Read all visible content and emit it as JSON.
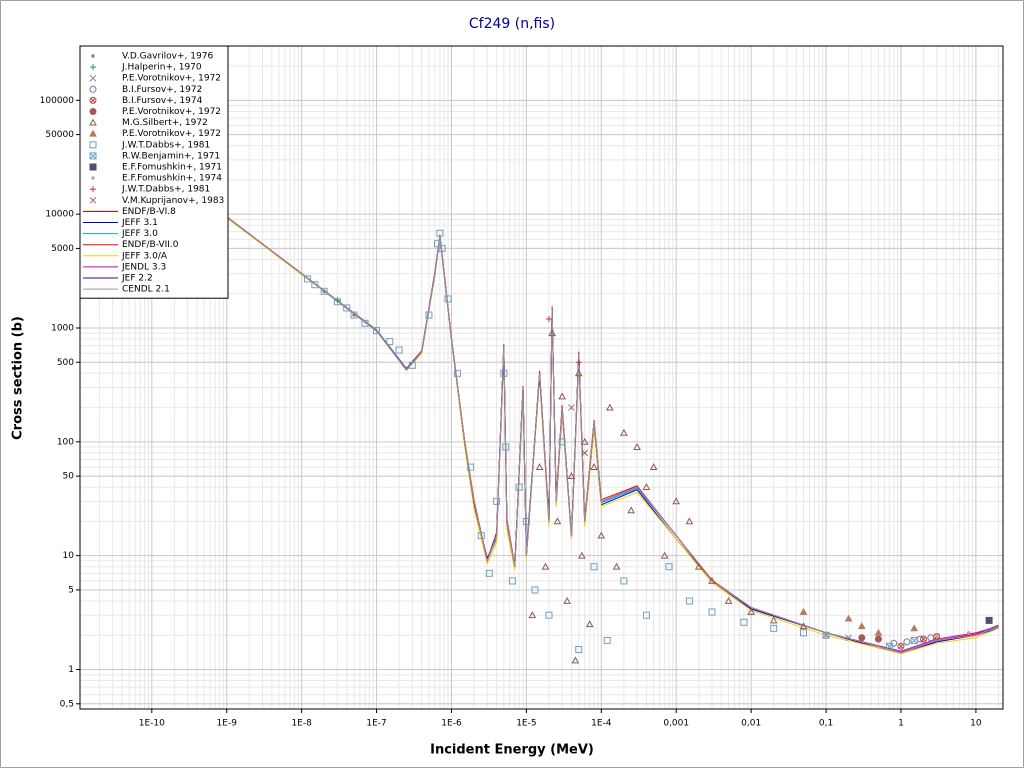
{
  "chart_data": {
    "type": "scatter",
    "title": "Cf249 (n,fis)",
    "x_label": "Incident Energy (MeV)",
    "y_label": "Cross section (b)",
    "xscale": "log",
    "yscale": "log",
    "grid": true,
    "legend": "upper left",
    "xlim": [
      1.1e-11,
      23
    ],
    "ylim": [
      0.45,
      300000
    ],
    "xticks": [
      {
        "value": 1e-10,
        "label": "1E-10"
      },
      {
        "value": 1e-09,
        "label": "1E-9"
      },
      {
        "value": 1e-08,
        "label": "1E-8"
      },
      {
        "value": 1e-07,
        "label": "1E-7"
      },
      {
        "value": 1e-06,
        "label": "1E-6"
      },
      {
        "value": 1e-05,
        "label": "1E-5"
      },
      {
        "value": 0.0001,
        "label": "1E-4"
      },
      {
        "value": 0.001,
        "label": "0,001"
      },
      {
        "value": 0.01,
        "label": "0,01"
      },
      {
        "value": 0.1,
        "label": "0,1"
      },
      1,
      10
    ],
    "yticks": [
      100000,
      50000,
      10000,
      5000,
      1000,
      500,
      100,
      50,
      10,
      5,
      1,
      {
        "value": 0.5,
        "label": "0,5"
      }
    ],
    "series": [
      {
        "name": "V.D.Gavrilov+, 1976",
        "marker": "dot",
        "color": "#808080",
        "x": [
          2e-08,
          5e-08
        ],
        "values": [
          2100,
          1300
        ]
      },
      {
        "name": "J.Halperin+, 1970",
        "marker": "plus",
        "color": "#2e8b57",
        "x": [
          3e-08
        ],
        "values": [
          1750
        ]
      },
      {
        "name": "P.E.Vorotnikov+, 1972",
        "marker": "x",
        "color": "#808080",
        "x": [
          0.1,
          0.2
        ],
        "values": [
          2.0,
          1.9
        ]
      },
      {
        "name": "B.I.Fursov+, 1972",
        "marker": "circle",
        "color": "#5f7fa8",
        "x": [
          0.8,
          1.2,
          1.8,
          2.5
        ],
        "values": [
          1.7,
          1.75,
          1.85,
          1.9
        ]
      },
      {
        "name": "B.I.Fursov+, 1974",
        "marker": "circle-x",
        "color": "#c04040",
        "x": [
          1,
          2,
          3
        ],
        "values": [
          1.6,
          1.85,
          1.95
        ]
      },
      {
        "name": "P.E.Vorotnikov+, 1972",
        "marker": "filled-circle",
        "color": "#a05a5a",
        "x": [
          0.3,
          0.5
        ],
        "values": [
          1.9,
          1.85
        ]
      },
      {
        "name": "M.G.Silbert+, 1972",
        "marker": "triangle",
        "color": "#8b5a4e",
        "x": [
          1.2e-05,
          1.5e-05,
          1.8e-05,
          2.2e-05,
          2.6e-05,
          3e-05,
          3.5e-05,
          4e-05,
          4.5e-05,
          5e-05,
          5.5e-05,
          6e-05,
          7e-05,
          8e-05,
          0.0001,
          0.00013,
          0.00016,
          0.0002,
          0.00025,
          0.0003,
          0.0004,
          0.0005,
          0.0007,
          0.001,
          0.0015,
          0.002,
          0.003,
          0.005,
          0.01,
          0.02,
          0.05
        ],
        "values": [
          3,
          60,
          8,
          900,
          20,
          250,
          4,
          50,
          1.2,
          400,
          10,
          100,
          2.5,
          60,
          15,
          200,
          8,
          120,
          25,
          90,
          40,
          60,
          10,
          30,
          20,
          8,
          6,
          4,
          3.2,
          2.7,
          2.4
        ]
      },
      {
        "name": "P.E.Vorotnikov+, 1972",
        "marker": "filled-triangle",
        "color": "#b87860",
        "x": [
          0.05,
          0.2,
          0.3,
          0.5,
          1.5
        ],
        "values": [
          3.2,
          2.8,
          2.4,
          2.1,
          2.3
        ]
      },
      {
        "name": "J.W.T.Dabbs+, 1981",
        "marker": "square",
        "color": "#6fa0c0",
        "x": [
          1.2e-08,
          1.5e-08,
          2e-08,
          3e-08,
          4e-08,
          5e-08,
          7e-08,
          1e-07,
          1.5e-07,
          2e-07,
          3e-07,
          5e-07,
          6.5e-07,
          7e-07,
          7.5e-07,
          9e-07,
          1.2e-06,
          1.8e-06,
          2.5e-06,
          3.2e-06,
          4e-06,
          5e-06,
          5.3e-06,
          6.5e-06,
          8e-06,
          1e-05,
          1.3e-05,
          2e-05,
          3e-05,
          5e-05,
          8e-05,
          0.00012,
          0.0002,
          0.0004,
          0.0008,
          0.0015,
          0.003,
          0.008,
          0.02,
          0.05,
          0.1
        ],
        "values": [
          2700,
          2400,
          2100,
          1700,
          1500,
          1300,
          1100,
          950,
          760,
          640,
          470,
          1300,
          5500,
          6800,
          5000,
          1800,
          400,
          60,
          15,
          7,
          30,
          400,
          90,
          6,
          40,
          20,
          5,
          3,
          100,
          1.5,
          8,
          1.8,
          6,
          3,
          8,
          4,
          3.2,
          2.6,
          2.3,
          2.1,
          2.0
        ]
      },
      {
        "name": "R.W.Benjamin+, 1971",
        "marker": "square-x",
        "color": "#6fa0c0",
        "x": [
          0.7,
          1.5
        ],
        "values": [
          1.6,
          1.8
        ]
      },
      {
        "name": "E.F.Fomushkin+, 1971",
        "marker": "filled-square",
        "color": "#5a4a6a",
        "x": [
          15
        ],
        "values": [
          2.7
        ]
      },
      {
        "name": "E.F.Fomushkin+, 1974",
        "marker": "dot",
        "color": "#c0a0a0",
        "x": [
          3,
          8
        ],
        "values": [
          2.0,
          2.1
        ]
      },
      {
        "name": "J.W.T.Dabbs+, 1981",
        "marker": "plus",
        "color": "#c03050",
        "x": [
          2e-05,
          5e-05
        ],
        "values": [
          1200,
          500
        ]
      },
      {
        "name": "V.M.Kuprijanov+, 1983",
        "marker": "x",
        "color": "#a06060",
        "x": [
          4e-05,
          6e-05
        ],
        "values": [
          200,
          80
        ]
      },
      {
        "name": "ENDF/B-VI.8",
        "marker": "line",
        "color": "#8b0000",
        "x": [
          1e-09,
          1e-08,
          1e-07,
          2.5e-07,
          4e-07,
          6e-07,
          7e-07,
          8e-07,
          1e-06,
          1.5e-06,
          2e-06,
          3e-06,
          4e-06,
          5e-06,
          5.5e-06,
          7e-06,
          9e-06,
          1e-05,
          1.5e-05,
          2e-05,
          2.2e-05,
          2.5e-05,
          3e-05,
          4e-05,
          5e-05,
          6e-05,
          8e-05,
          0.0001,
          0.0003,
          0.001,
          0.003,
          0.01,
          0.1,
          0.5,
          1,
          3,
          10,
          20
        ],
        "values": [
          9500,
          3000,
          950,
          430,
          620,
          3000,
          6500,
          3000,
          800,
          100,
          30,
          9,
          15,
          700,
          20,
          8,
          300,
          10,
          400,
          20,
          1500,
          30,
          200,
          15,
          600,
          20,
          150,
          30,
          40,
          15,
          6,
          3.5,
          2.1,
          1.6,
          1.4,
          1.8,
          2.0,
          2.4
        ]
      },
      {
        "name": "JEFF 3.1",
        "marker": "line",
        "color": "#0000cc",
        "x": [
          1e-09,
          1e-08,
          1e-07,
          2.5e-07,
          4e-07,
          6e-07,
          7e-07,
          8e-07,
          1e-06,
          1.5e-06,
          2e-06,
          3e-06,
          4e-06,
          5e-06,
          5.5e-06,
          7e-06,
          9e-06,
          1e-05,
          1.5e-05,
          2e-05,
          2.2e-05,
          2.5e-05,
          3e-05,
          4e-05,
          5e-05,
          6e-05,
          8e-05,
          0.0001,
          0.0003,
          0.001,
          0.003,
          0.01,
          0.1,
          0.5,
          1,
          3,
          10,
          20
        ],
        "values": [
          9400,
          3000,
          960,
          440,
          630,
          3100,
          6400,
          2900,
          790,
          95,
          28,
          9.5,
          14,
          650,
          18,
          8,
          280,
          11,
          380,
          19,
          1400,
          28,
          190,
          14,
          550,
          19,
          140,
          28,
          38,
          14,
          6,
          3.4,
          2.1,
          1.55,
          1.4,
          1.75,
          2.0,
          2.3
        ]
      },
      {
        "name": "JEFF 3.0",
        "marker": "line",
        "color": "#00aaff",
        "x": [
          1e-09,
          1e-08,
          1e-07,
          2.5e-07,
          4e-07,
          6e-07,
          7e-07,
          8e-07,
          1e-06,
          1.5e-06,
          2e-06,
          3e-06,
          4e-06,
          5e-06,
          5.5e-06,
          7e-06,
          9e-06,
          1e-05,
          1.5e-05,
          2e-05,
          2.2e-05,
          2.5e-05,
          3e-05,
          4e-05,
          5e-05,
          6e-05,
          8e-05,
          0.0001,
          0.0003,
          0.001,
          0.003,
          0.01,
          0.1,
          0.5,
          1,
          3,
          10,
          20
        ],
        "values": [
          9450,
          2980,
          950,
          435,
          615,
          2950,
          6300,
          2950,
          780,
          98,
          29,
          9.2,
          14,
          680,
          19,
          8,
          290,
          10,
          390,
          20,
          1450,
          29,
          195,
          15,
          580,
          20,
          145,
          29,
          39,
          15,
          6,
          3.5,
          2.1,
          1.6,
          1.42,
          1.8,
          2.0,
          2.35
        ]
      },
      {
        "name": "ENDF/B-VII.0",
        "marker": "line",
        "color": "#ff0000",
        "x": [
          1e-09,
          1e-08,
          1e-07,
          2.5e-07,
          4e-07,
          6e-07,
          7e-07,
          8e-07,
          1e-06,
          1.5e-06,
          2e-06,
          3e-06,
          4e-06,
          5e-06,
          5.5e-06,
          7e-06,
          9e-06,
          1e-05,
          1.5e-05,
          2e-05,
          2.2e-05,
          2.5e-05,
          3e-05,
          4e-05,
          5e-05,
          6e-05,
          8e-05,
          0.0001,
          0.0003,
          0.001,
          0.003,
          0.01,
          0.1,
          0.5,
          1,
          3,
          10,
          20
        ],
        "values": [
          9500,
          3020,
          955,
          432,
          625,
          3050,
          6600,
          3050,
          810,
          102,
          31,
          9.1,
          16,
          720,
          21,
          8.2,
          310,
          10,
          420,
          21,
          1550,
          31,
          210,
          15,
          620,
          21,
          155,
          31,
          41,
          15,
          6.1,
          3.5,
          2.1,
          1.6,
          1.4,
          1.8,
          2.05,
          2.45
        ]
      },
      {
        "name": "JEFF 3.0/A",
        "marker": "line",
        "color": "#ffcc00",
        "x": [
          1e-09,
          1e-08,
          1e-07,
          2.5e-07,
          4e-07,
          6e-07,
          7e-07,
          8e-07,
          1e-06,
          1.5e-06,
          2e-06,
          3e-06,
          4e-06,
          5e-06,
          5.5e-06,
          7e-06,
          9e-06,
          1e-05,
          1.5e-05,
          2e-05,
          2.2e-05,
          2.5e-05,
          3e-05,
          4e-05,
          5e-05,
          6e-05,
          8e-05,
          0.0001,
          0.0003,
          0.001,
          0.003,
          0.01,
          0.1,
          0.5,
          1,
          3,
          10,
          20
        ],
        "values": [
          9300,
          2950,
          940,
          425,
          600,
          2900,
          6200,
          2850,
          760,
          90,
          26,
          8.5,
          13,
          600,
          17,
          7.5,
          260,
          9.5,
          360,
          18,
          1300,
          27,
          180,
          14,
          520,
          18,
          130,
          27,
          36,
          14,
          5.8,
          3.3,
          2.0,
          1.55,
          1.38,
          1.7,
          1.9,
          2.3
        ]
      },
      {
        "name": "JENDL 3.3",
        "marker": "line",
        "color": "#cc00cc",
        "x": [
          1e-09,
          1e-08,
          1e-07,
          2.5e-07,
          4e-07,
          6e-07,
          7e-07,
          8e-07,
          1e-06,
          1.5e-06,
          2e-06,
          3e-06,
          4e-06,
          5e-06,
          5.5e-06,
          7e-06,
          9e-06,
          1e-05,
          1.5e-05,
          2e-05,
          2.2e-05,
          2.5e-05,
          3e-05,
          4e-05,
          5e-05,
          6e-05,
          8e-05,
          0.0001,
          0.0003,
          0.001,
          0.003,
          0.01,
          0.1,
          0.5,
          1,
          3,
          10,
          20
        ],
        "values": [
          9500,
          3000,
          950,
          430,
          620,
          3000,
          6500,
          3000,
          800,
          100,
          30,
          9,
          15,
          700,
          20,
          8,
          300,
          10,
          400,
          20,
          1500,
          30,
          200,
          15,
          600,
          20,
          150,
          30,
          40,
          15,
          6,
          3.5,
          2.1,
          1.62,
          1.45,
          1.85,
          2.1,
          2.4
        ]
      },
      {
        "name": "JEF 2.2",
        "marker": "line",
        "color": "#400080",
        "x": [
          1e-09,
          1e-08,
          1e-07,
          2.5e-07,
          4e-07,
          6e-07,
          7e-07,
          8e-07,
          1e-06,
          1.5e-06,
          2e-06,
          3e-06,
          4e-06,
          5e-06,
          5.5e-06,
          7e-06,
          9e-06,
          1e-05,
          1.5e-05,
          2e-05,
          2.2e-05,
          2.5e-05,
          3e-05,
          4e-05,
          5e-05,
          6e-05,
          8e-05,
          0.0001,
          0.0003,
          0.001,
          0.003,
          0.01,
          0.1,
          0.5,
          1,
          3,
          10,
          20
        ],
        "values": [
          9450,
          3000,
          945,
          428,
          618,
          2980,
          6450,
          2980,
          795,
          99,
          29,
          9.3,
          15,
          690,
          20,
          8,
          295,
          10,
          395,
          20,
          1480,
          30,
          198,
          15,
          590,
          20,
          148,
          30,
          40,
          15,
          6,
          3.5,
          2.1,
          1.6,
          1.4,
          1.8,
          2.0,
          2.4
        ]
      },
      {
        "name": "CENDL 2.1",
        "marker": "line",
        "color": "#999999",
        "x": [
          1e-09,
          1e-08,
          1e-07,
          2.5e-07,
          4e-07,
          6e-07,
          7e-07,
          8e-07,
          1e-06,
          1.5e-06,
          2e-06,
          3e-06,
          4e-06,
          5e-06,
          5.5e-06,
          7e-06,
          9e-06,
          1e-05,
          1.5e-05,
          2e-05,
          2.2e-05,
          2.5e-05,
          3e-05,
          4e-05,
          5e-05,
          6e-05,
          8e-05,
          0.0001,
          0.0003,
          0.001,
          0.003,
          0.01,
          0.1,
          0.5,
          1,
          3,
          10,
          20
        ],
        "values": [
          9500,
          3000,
          950,
          430,
          620,
          3000,
          6500,
          3000,
          800,
          100,
          30,
          9,
          15,
          700,
          20,
          8,
          300,
          10,
          400,
          20,
          1500,
          30,
          200,
          15,
          600,
          20,
          150,
          30,
          40,
          15,
          6,
          3.5,
          2.1,
          1.6,
          1.4,
          1.8,
          2.0,
          2.4
        ]
      }
    ]
  }
}
